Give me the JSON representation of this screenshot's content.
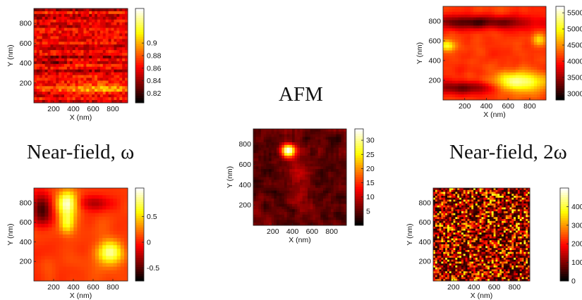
{
  "labels": {
    "afm": "AFM",
    "near_field_omega": "Near-field, ω",
    "near_field_2omega": "Near-field, 2ω"
  },
  "chart_data": [
    {
      "type": "heatmap",
      "title": "",
      "colormap": "hot",
      "xlabel": "X (nm)",
      "ylabel": "Y (nm)",
      "xlim": [
        0,
        950
      ],
      "ylim": [
        0,
        950
      ],
      "xticks": [
        "200",
        "400",
        "600",
        "800"
      ],
      "yticks": [
        "200",
        "400",
        "600",
        "800"
      ],
      "colorbar": {
        "range": [
          0.805,
          0.955
        ],
        "ticks": [
          "0.9",
          "0.88",
          "0.86",
          "0.84",
          "0.82"
        ],
        "tick_values": [
          0.9,
          0.88,
          0.86,
          0.84,
          0.82
        ]
      },
      "pattern": "horizontal-streaks"
    },
    {
      "type": "heatmap",
      "title": "",
      "colormap": "hot",
      "xlabel": "X (nm)",
      "ylabel": "Y (nm)",
      "xlim": [
        0,
        950
      ],
      "ylim": [
        0,
        950
      ],
      "xticks": [
        "200",
        "400",
        "600",
        "800"
      ],
      "yticks": [
        "200",
        "400",
        "600",
        "800"
      ],
      "colorbar": {
        "range": [
          2800,
          5700
        ],
        "ticks": [
          "5500",
          "5000",
          "4500",
          "4000",
          "3500",
          "3000"
        ],
        "tick_values": [
          5500,
          5000,
          4500,
          4000,
          3500,
          3000
        ]
      },
      "pattern": "bands"
    },
    {
      "type": "heatmap",
      "title": "",
      "colormap": "hot",
      "xlabel": "X (nm)",
      "ylabel": "Y (nm)",
      "xlim": [
        0,
        950
      ],
      "ylim": [
        0,
        950
      ],
      "xticks": [
        "200",
        "400",
        "600",
        "800"
      ],
      "yticks": [
        "200",
        "400",
        "600",
        "800"
      ],
      "colorbar": {
        "range": [
          0,
          34
        ],
        "ticks": [
          "30",
          "25",
          "20",
          "15",
          "10",
          "5"
        ],
        "tick_values": [
          30,
          25,
          20,
          15,
          10,
          5
        ]
      },
      "pattern": "speckle-with-bright-spot"
    },
    {
      "type": "heatmap",
      "title": "",
      "colormap": "hot",
      "xlabel": "X (nm)",
      "ylabel": "Y (nm)",
      "xlim": [
        0,
        950
      ],
      "ylim": [
        0,
        950
      ],
      "xticks": [
        "200",
        "400",
        "600",
        "800"
      ],
      "yticks": [
        "200",
        "400",
        "600",
        "800"
      ],
      "colorbar": {
        "range": [
          -0.75,
          1.05
        ],
        "ticks": [
          "0.5",
          "0",
          "-0.5"
        ],
        "tick_values": [
          0.5,
          0,
          -0.5
        ]
      },
      "pattern": "smooth-blobs"
    },
    {
      "type": "heatmap",
      "title": "",
      "colormap": "hot",
      "xlabel": "X (nm)",
      "ylabel": "Y (nm)",
      "xlim": [
        0,
        950
      ],
      "ylim": [
        0,
        950
      ],
      "xticks": [
        "200",
        "400",
        "600",
        "800"
      ],
      "yticks": [
        "200",
        "400",
        "600",
        "800"
      ],
      "colorbar": {
        "range": [
          0,
          500
        ],
        "ticks": [
          "400",
          "300",
          "200",
          "100",
          "0"
        ],
        "tick_values": [
          400,
          300,
          200,
          100,
          0
        ]
      },
      "pattern": "fine-speckle"
    }
  ]
}
